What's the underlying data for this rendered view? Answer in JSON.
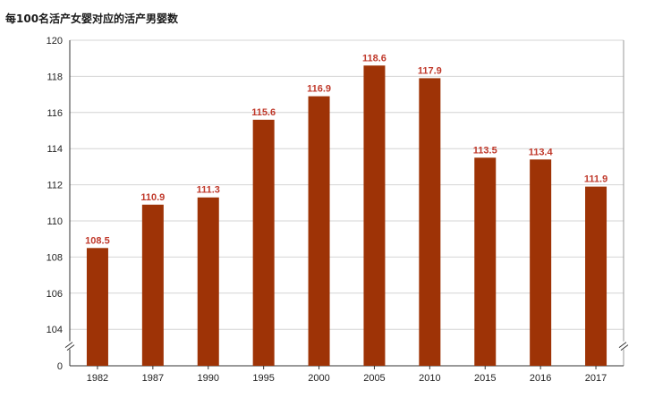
{
  "chart_data": {
    "type": "bar",
    "title": "每100名活产女婴对应的活产男婴数",
    "xlabel": "",
    "ylabel": "",
    "categories": [
      "1982",
      "1987",
      "1990",
      "1995",
      "2000",
      "2005",
      "2010",
      "2015",
      "2016",
      "2017"
    ],
    "values": [
      108.5,
      110.9,
      111.3,
      115.6,
      116.9,
      118.6,
      117.9,
      113.5,
      113.4,
      111.9
    ],
    "ylim": [
      104,
      120
    ],
    "yticks": [
      104,
      106,
      108,
      110,
      112,
      114,
      116,
      118,
      120
    ],
    "axis_break_base_label": "0",
    "grid": true,
    "bar_color": "#9e3306",
    "label_color": "#c0392b"
  }
}
